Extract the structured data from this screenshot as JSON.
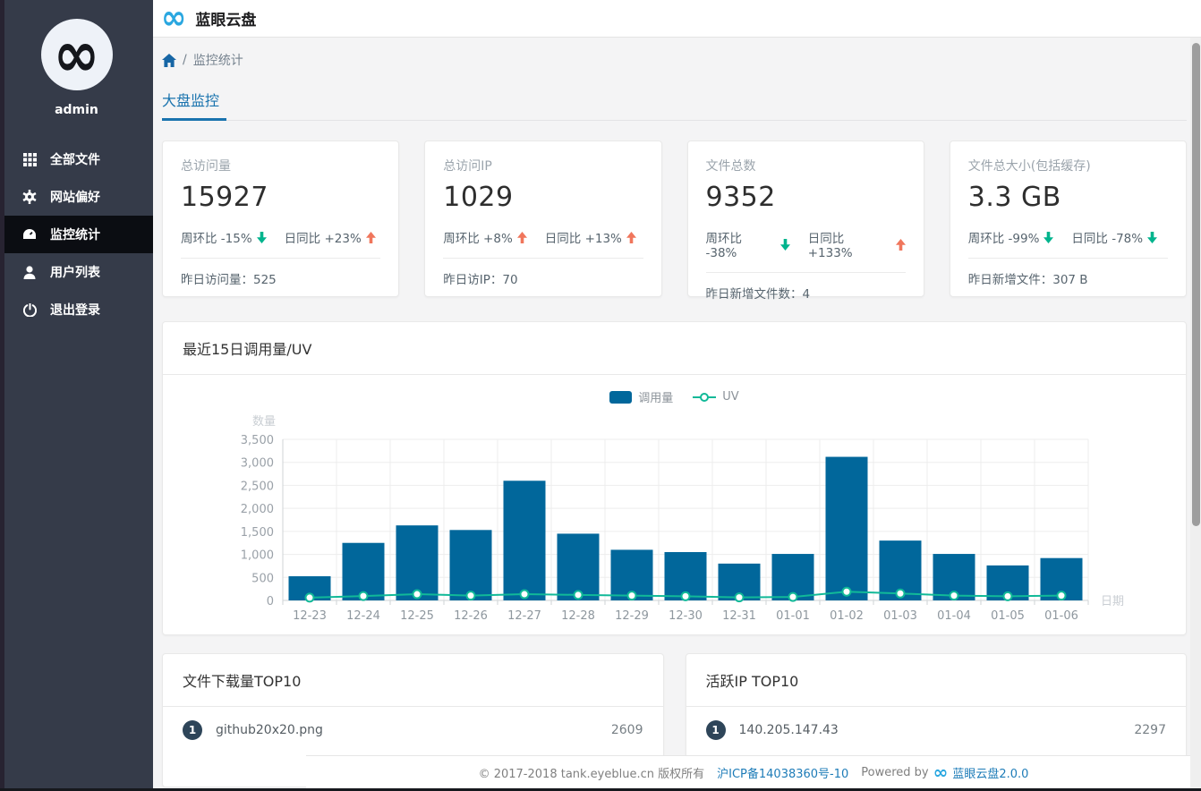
{
  "app": {
    "title": "蓝眼云盘"
  },
  "sidebar": {
    "username": "admin",
    "items": [
      {
        "label": "全部文件",
        "icon": "grid-icon",
        "active": false
      },
      {
        "label": "网站偏好",
        "icon": "gear-icon",
        "active": false
      },
      {
        "label": "监控统计",
        "icon": "dashboard-icon",
        "active": true
      },
      {
        "label": "用户列表",
        "icon": "user-icon",
        "active": false
      },
      {
        "label": "退出登录",
        "icon": "power-icon",
        "active": false
      }
    ]
  },
  "breadcrumb": {
    "separator": "/",
    "current": "监控统计"
  },
  "tabs": {
    "active": "大盘监控"
  },
  "stat_cards": [
    {
      "label": "总访问量",
      "value": "15927",
      "trends": [
        {
          "text": "周环比 -15%",
          "direction": "down"
        },
        {
          "text": "日同比 +23%",
          "direction": "up"
        }
      ],
      "footer_label": "昨日访问量：",
      "footer_value": "525"
    },
    {
      "label": "总访问IP",
      "value": "1029",
      "trends": [
        {
          "text": "周环比 +8%",
          "direction": "up"
        },
        {
          "text": "日同比 +13%",
          "direction": "up"
        }
      ],
      "footer_label": "昨日访IP：",
      "footer_value": "70"
    },
    {
      "label": "文件总数",
      "value": "9352",
      "trends": [
        {
          "text": "周环比 -38%",
          "direction": "down"
        },
        {
          "text": "日同比 +133%",
          "direction": "up"
        }
      ],
      "footer_label": "昨日新增文件数：",
      "footer_value": "4"
    },
    {
      "label": "文件总大小(包括缓存)",
      "value": "3.3 GB",
      "trends": [
        {
          "text": "周环比 -99%",
          "direction": "down"
        },
        {
          "text": "日同比 -78%",
          "direction": "down"
        }
      ],
      "footer_label": "昨日新增文件：",
      "footer_value": "307 B"
    }
  ],
  "chart_card": {
    "title": "最近15日调用量/UV"
  },
  "chart_data": {
    "type": "bar",
    "title": "最近15日调用量/UV",
    "categories": [
      "12-23",
      "12-24",
      "12-25",
      "12-26",
      "12-27",
      "12-28",
      "12-29",
      "12-30",
      "12-31",
      "01-01",
      "01-02",
      "01-03",
      "01-04",
      "01-05",
      "01-06"
    ],
    "series": [
      {
        "name": "调用量",
        "type": "bar",
        "color": "#01679b",
        "values": [
          525,
          1250,
          1630,
          1530,
          2600,
          1450,
          1100,
          1050,
          800,
          1010,
          3120,
          1300,
          1010,
          760,
          920
        ]
      },
      {
        "name": "UV",
        "type": "line",
        "color": "#11b998",
        "values": [
          60,
          95,
          135,
          105,
          135,
          120,
          105,
          90,
          65,
          75,
          190,
          150,
          105,
          90,
          105
        ]
      }
    ],
    "xlabel": "日期",
    "ylabel": "数量",
    "ylim": [
      0,
      3500
    ],
    "ytick_step": 500,
    "grid": true,
    "legend_position": "top-center"
  },
  "top_lists": [
    {
      "title": "文件下载量TOP10",
      "rows": [
        {
          "rank": "1",
          "name": "github20x20.png",
          "value": "2609"
        }
      ]
    },
    {
      "title": "活跃IP TOP10",
      "rows": [
        {
          "rank": "1",
          "name": "140.205.147.43",
          "value": "2297"
        }
      ]
    }
  ],
  "footer": {
    "copyright": "© 2017-2018 tank.eyeblue.cn 版权所有",
    "icp": "沪ICP备14038360号-10",
    "powered_by": "Powered by",
    "product": "蓝眼云盘2.0.0"
  },
  "colors": {
    "accent_blue": "#1973ae",
    "bar_blue": "#01679b",
    "line_green": "#11b998",
    "trend_up": "#f0765c",
    "trend_down": "#00b48d",
    "sidebar_bg": "#353b49",
    "sidebar_active": "#0b0d12",
    "badge_navy": "#2e4559"
  }
}
